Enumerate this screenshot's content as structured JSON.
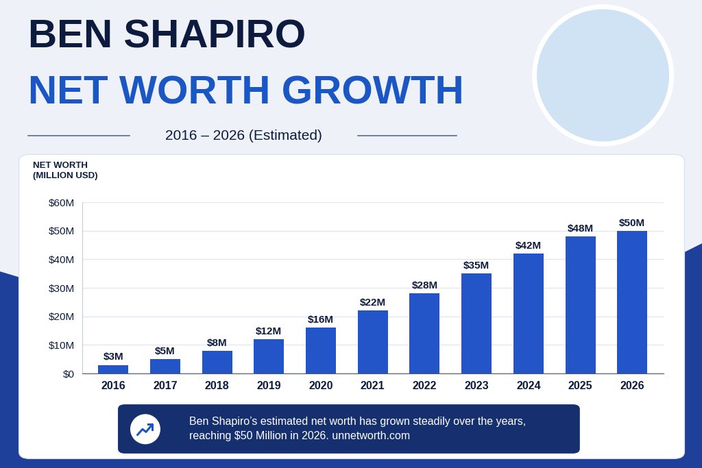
{
  "chart_data": {
    "type": "bar",
    "title": "BEN SHAPIRO",
    "subtitle": "NET WORTH GROWTH",
    "annotations": [
      "2016 – 2026 (Estimated)",
      "Ben Shapiro’s estimated net worth has grown steadily over the years,\nreaching $50 Million in 2026. unnetworth.com"
    ],
    "ylabel": "NET WORTH\n(MILLION USD)",
    "categories": [
      "2016",
      "2017",
      "2018",
      "2019",
      "2020",
      "2021",
      "2022",
      "2023",
      "2024",
      "2025",
      "2026"
    ],
    "values": [
      3,
      5,
      8,
      12,
      16,
      22,
      28,
      35,
      42,
      48,
      50
    ],
    "value_labels": [
      "$3M",
      "$5M",
      "$8M",
      "$12M",
      "$16M",
      "$22M",
      "$28M",
      "$35M",
      "$42M",
      "$48M",
      "$50M"
    ],
    "data_labels": true,
    "color": "#2354c8",
    "ylim": [
      0,
      60
    ],
    "yticks": [
      {
        "value": 0,
        "label": "$0"
      },
      {
        "value": 10,
        "label": "$10M"
      },
      {
        "value": 20,
        "label": "$20M"
      },
      {
        "value": 30,
        "label": "$30M"
      },
      {
        "value": 40,
        "label": "$40M"
      },
      {
        "value": 50,
        "label": "$50M"
      },
      {
        "value": 60,
        "label": "$60M"
      }
    ],
    "grid": true
  }
}
